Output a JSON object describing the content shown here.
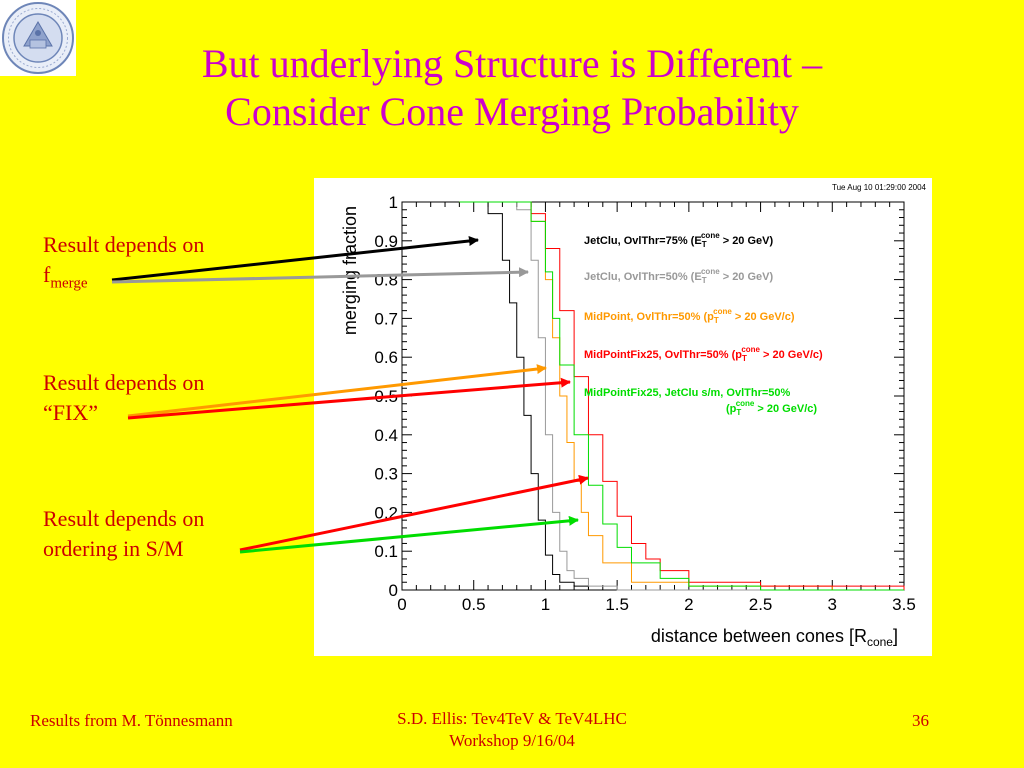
{
  "slide": {
    "title_line1": "But underlying Structure is Different –",
    "title_line2": "Consider Cone Merging Probability",
    "seal_text": "UNIVERSITY OF WASHINGTON 1861",
    "notes": [
      {
        "text": "Result depends on",
        "line2": "f",
        "line2_sub": "merge"
      },
      {
        "text": "Result depends on",
        "line2": "“FIX”"
      },
      {
        "text": "Result depends on",
        "line2": "ordering in S/M"
      }
    ],
    "footer_left": "Results from M. Tönnesmann",
    "footer_center_line1": "S.D. Ellis: Tev4TeV & TeV4LHC",
    "footer_center_line2": "Workshop  9/16/04",
    "page_number": "36"
  },
  "colors": {
    "background": "#ffff00",
    "title": "#cc00cc",
    "text": "#cc0000",
    "black": "#000000",
    "gray": "#999999",
    "orange": "#ff9900",
    "red": "#ff0000",
    "green": "#00dd00"
  },
  "chart_data": {
    "type": "line",
    "timestamp": "Tue Aug 10 01:29:00 2004",
    "ylabel": "merging fraction",
    "xlabel": "distance between cones [R",
    "xlabel_sub": "cone",
    "xlabel_end": "]",
    "xlim": [
      0,
      3.5
    ],
    "ylim": [
      0,
      1
    ],
    "x_ticks": [
      "0",
      "0.5",
      "1",
      "1.5",
      "2",
      "2.5",
      "3",
      "3.5"
    ],
    "y_ticks": [
      "0",
      "0.1",
      "0.2",
      "0.3",
      "0.4",
      "0.5",
      "0.6",
      "0.7",
      "0.8",
      "0.9",
      "1"
    ],
    "grid": false,
    "legend": "right",
    "series": [
      {
        "name": "JetClu, OvlThr=75% (E",
        "name_sup": "cone",
        "name_sub": "T",
        "name_end": " > 20 GeV)",
        "color": "#000000",
        "x": [
          0.4,
          0.5,
          0.6,
          0.7,
          0.75,
          0.8,
          0.85,
          0.9,
          0.95,
          1.0,
          1.05,
          1.1,
          1.2,
          1.3,
          1.5
        ],
        "y": [
          1.0,
          1.0,
          0.97,
          0.85,
          0.74,
          0.6,
          0.45,
          0.3,
          0.18,
          0.09,
          0.04,
          0.02,
          0.01,
          0.0,
          0.0
        ]
      },
      {
        "name": "JetClu, OvlThr=50% (E",
        "name_sup": "cone",
        "name_sub": "T",
        "name_end": " > 20 GeV)",
        "color": "#999999",
        "x": [
          0.4,
          0.7,
          0.8,
          0.9,
          0.95,
          1.0,
          1.05,
          1.1,
          1.15,
          1.2,
          1.3,
          1.5,
          2.0,
          3.5
        ],
        "y": [
          1.0,
          1.0,
          0.98,
          0.85,
          0.65,
          0.4,
          0.2,
          0.1,
          0.05,
          0.03,
          0.01,
          0.0,
          0.0,
          0.0
        ]
      },
      {
        "name": "MidPoint, OvlThr=50% (p",
        "name_sup": "cone",
        "name_sub": "T",
        "name_end": " > 20 GeV/c)",
        "color": "#ff9900",
        "x": [
          0.4,
          0.8,
          0.9,
          1.0,
          1.05,
          1.1,
          1.15,
          1.2,
          1.25,
          1.3,
          1.4,
          1.6,
          2.0,
          3.0,
          3.5
        ],
        "y": [
          1.0,
          1.0,
          0.95,
          0.8,
          0.65,
          0.5,
          0.38,
          0.28,
          0.2,
          0.14,
          0.07,
          0.02,
          0.01,
          0.0,
          0.0
        ]
      },
      {
        "name": "MidPointFix25, OvlThr=50% (p",
        "name_sup": "cone",
        "name_sub": "T",
        "name_end": " > 20 GeV/c)",
        "color": "#ff0000",
        "x": [
          0.4,
          0.8,
          0.9,
          1.0,
          1.1,
          1.2,
          1.3,
          1.4,
          1.5,
          1.6,
          1.7,
          1.8,
          2.0,
          2.5,
          3.5
        ],
        "y": [
          1.0,
          1.0,
          0.97,
          0.88,
          0.72,
          0.55,
          0.4,
          0.28,
          0.19,
          0.12,
          0.08,
          0.05,
          0.02,
          0.01,
          0.0
        ]
      },
      {
        "name": "MidPointFix25, JetClu s/m, OvlThr=50%",
        "name2": "(p",
        "name_sup": "cone",
        "name_sub": "T",
        "name_end": " > 20 GeV/c)",
        "color": "#00dd00",
        "x": [
          0.4,
          0.8,
          0.9,
          1.0,
          1.05,
          1.1,
          1.2,
          1.3,
          1.4,
          1.5,
          1.6,
          1.8,
          2.0,
          2.5,
          3.5
        ],
        "y": [
          1.0,
          1.0,
          0.95,
          0.82,
          0.7,
          0.58,
          0.4,
          0.27,
          0.17,
          0.11,
          0.07,
          0.03,
          0.01,
          0.0,
          0.0
        ]
      }
    ]
  }
}
